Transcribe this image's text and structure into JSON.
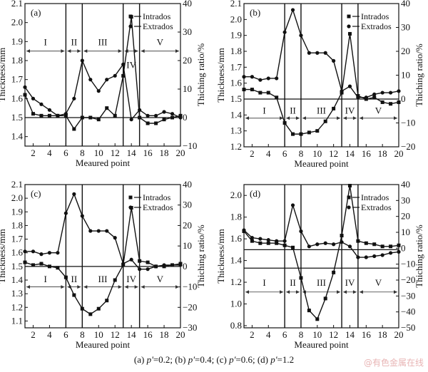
{
  "chart_data": [
    {
      "type": "line",
      "panel_label": "(a)",
      "xlabel": "Meaured point",
      "ylabel": "Thickness/mm",
      "y2label": "Thiching ratio/%",
      "x": [
        1,
        2,
        3,
        4,
        5,
        6,
        7,
        8,
        9,
        10,
        11,
        12,
        13,
        14,
        15,
        16,
        17,
        18,
        19,
        20
      ],
      "xticks": [
        2,
        4,
        6,
        8,
        10,
        12,
        14,
        16,
        18,
        20
      ],
      "xlim": [
        1,
        20
      ],
      "ylim": [
        1.35,
        2.1
      ],
      "yticks": [
        1.4,
        1.5,
        1.6,
        1.7,
        1.8,
        1.9,
        2.0,
        2.1
      ],
      "y2lim": [
        -10,
        40
      ],
      "y2ticks": [
        -10,
        0,
        10,
        20,
        30,
        40
      ],
      "reference_lines_y": [
        1.5
      ],
      "region_boundaries_x": [
        6,
        8,
        13,
        15
      ],
      "regions": [
        {
          "label": "I",
          "from": 1,
          "to": 6
        },
        {
          "label": "II",
          "from": 6,
          "to": 8
        },
        {
          "label": "III",
          "from": 8,
          "to": 13
        },
        {
          "label": "IV",
          "from": 13,
          "to": 15
        },
        {
          "label": "V",
          "from": 15,
          "to": 20
        }
      ],
      "region_arrow_y": 1.85,
      "region_label_y": 1.9,
      "region_iv_label_y": 1.78,
      "legend_position": "top-right",
      "series": [
        {
          "name": "Intrados",
          "marker": "square",
          "values": [
            1.62,
            1.52,
            1.51,
            1.51,
            1.51,
            1.51,
            1.44,
            1.5,
            1.5,
            1.49,
            1.55,
            1.51,
            1.72,
            2.03,
            1.5,
            1.47,
            1.47,
            1.49,
            1.5,
            1.51
          ]
        },
        {
          "name": "Extrados",
          "marker": "circle",
          "values": [
            1.66,
            1.6,
            1.57,
            1.54,
            1.51,
            1.52,
            1.6,
            1.8,
            1.7,
            1.64,
            1.7,
            1.72,
            1.78,
            1.49,
            1.54,
            1.51,
            1.51,
            1.53,
            1.52,
            1.5
          ]
        }
      ]
    },
    {
      "type": "line",
      "panel_label": "(b)",
      "xlabel": "Meaured point",
      "ylabel": "Thickness/mm",
      "y2label": "Thiching ratio/%",
      "x": [
        1,
        2,
        3,
        4,
        5,
        6,
        7,
        8,
        9,
        10,
        11,
        12,
        13,
        14,
        15,
        16,
        17,
        18,
        19,
        20
      ],
      "xticks": [
        2,
        4,
        6,
        8,
        10,
        12,
        14,
        16,
        18,
        20
      ],
      "xlim": [
        1,
        20
      ],
      "ylim": [
        1.2,
        2.1
      ],
      "yticks": [
        1.2,
        1.3,
        1.4,
        1.5,
        1.6,
        1.7,
        1.8,
        1.9,
        2.0,
        2.1
      ],
      "y2lim": [
        -20,
        40
      ],
      "y2ticks": [
        -20,
        -10,
        0,
        10,
        20,
        30,
        40
      ],
      "reference_lines_y": [
        1.5
      ],
      "region_boundaries_x": [
        6,
        8,
        13,
        15
      ],
      "regions": [
        {
          "label": "I",
          "from": 1,
          "to": 6
        },
        {
          "label": "II",
          "from": 6,
          "to": 8
        },
        {
          "label": "III",
          "from": 8,
          "to": 13
        },
        {
          "label": "IV",
          "from": 13,
          "to": 15
        },
        {
          "label": "V",
          "from": 15,
          "to": 20
        }
      ],
      "region_arrow_y": 1.38,
      "region_label_y": 1.43,
      "region_iv_label_y": 1.43,
      "legend_position": "top-right",
      "series": [
        {
          "name": "Intrados",
          "marker": "square",
          "values": [
            1.56,
            1.56,
            1.54,
            1.54,
            1.51,
            1.35,
            1.28,
            1.28,
            1.29,
            1.3,
            1.36,
            1.44,
            1.54,
            1.91,
            1.52,
            1.5,
            1.51,
            1.48,
            1.47,
            1.48
          ]
        },
        {
          "name": "Extrados",
          "marker": "circle",
          "values": [
            1.64,
            1.64,
            1.62,
            1.63,
            1.63,
            1.92,
            2.06,
            1.9,
            1.79,
            1.79,
            1.79,
            1.74,
            1.55,
            1.58,
            1.51,
            1.51,
            1.53,
            1.54,
            1.54,
            1.55
          ]
        }
      ]
    },
    {
      "type": "line",
      "panel_label": "(c)",
      "xlabel": "Meaured point",
      "ylabel": "Thickness/mm",
      "y2label": "Thiching ratio/%",
      "x": [
        1,
        2,
        3,
        4,
        5,
        6,
        7,
        8,
        9,
        10,
        11,
        12,
        13,
        14,
        15,
        16,
        17,
        18,
        19,
        20
      ],
      "xticks": [
        2,
        4,
        6,
        8,
        10,
        12,
        14,
        16,
        18,
        20
      ],
      "xlim": [
        1,
        20
      ],
      "ylim": [
        1.05,
        2.1
      ],
      "yticks": [
        1.1,
        1.2,
        1.3,
        1.4,
        1.5,
        1.6,
        1.7,
        1.8,
        1.9,
        2.0,
        2.1
      ],
      "y2lim": [
        -30,
        40
      ],
      "y2ticks": [
        -30,
        -20,
        -10,
        0,
        10,
        20,
        30,
        40
      ],
      "reference_lines_y": [
        1.5
      ],
      "region_boundaries_x": [
        6,
        8,
        13,
        15
      ],
      "regions": [
        {
          "label": "I",
          "from": 1,
          "to": 6
        },
        {
          "label": "II",
          "from": 6,
          "to": 8
        },
        {
          "label": "III",
          "from": 8,
          "to": 13
        },
        {
          "label": "IV",
          "from": 13,
          "to": 15
        },
        {
          "label": "V",
          "from": 15,
          "to": 20
        }
      ],
      "region_arrow_y": 1.35,
      "region_label_y": 1.41,
      "region_iv_label_y": 1.41,
      "legend_position": "top-right",
      "series": [
        {
          "name": "Intrados",
          "marker": "square",
          "values": [
            1.53,
            1.51,
            1.52,
            1.5,
            1.49,
            1.42,
            1.29,
            1.19,
            1.15,
            1.19,
            1.25,
            1.4,
            1.51,
            1.93,
            1.54,
            1.53,
            1.5,
            1.5,
            1.51,
            1.52
          ]
        },
        {
          "name": "Extrados",
          "marker": "circle",
          "values": [
            1.61,
            1.61,
            1.59,
            1.6,
            1.6,
            1.89,
            2.03,
            1.87,
            1.76,
            1.76,
            1.76,
            1.71,
            1.52,
            1.55,
            1.48,
            1.48,
            1.5,
            1.51,
            1.51,
            1.51
          ]
        }
      ]
    },
    {
      "type": "line",
      "panel_label": "(d)",
      "xlabel": "Meaured point",
      "ylabel": "Thickness/mm",
      "y2label": "Thiching ratio/%",
      "x": [
        1,
        2,
        3,
        4,
        5,
        6,
        7,
        8,
        9,
        10,
        11,
        12,
        13,
        14,
        15,
        16,
        17,
        18,
        19,
        20
      ],
      "xticks": [
        2,
        4,
        6,
        8,
        10,
        12,
        14,
        16,
        18,
        20
      ],
      "xlim": [
        1,
        20
      ],
      "ylim": [
        0.78,
        2.1
      ],
      "yticks": [
        0.8,
        1.0,
        1.2,
        1.4,
        1.6,
        1.8,
        2.0
      ],
      "y2lim": [
        -50,
        40
      ],
      "y2ticks": [
        -50,
        -40,
        -30,
        -20,
        -10,
        0,
        10,
        20,
        30,
        40
      ],
      "reference_lines_y": [
        1.5,
        1.33
      ],
      "region_boundaries_x": [
        6,
        8,
        13,
        15
      ],
      "regions": [
        {
          "label": "I",
          "from": 1,
          "to": 6
        },
        {
          "label": "II",
          "from": 6,
          "to": 8
        },
        {
          "label": "III",
          "from": 8,
          "to": 13
        },
        {
          "label": "IV",
          "from": 13,
          "to": 15
        },
        {
          "label": "V",
          "from": 15,
          "to": 20
        }
      ],
      "region_arrow_y": 1.11,
      "region_label_y": 1.2,
      "region_iv_label_y": 1.2,
      "legend_position": "top-right",
      "series": [
        {
          "name": "Intrados",
          "marker": "square",
          "values": [
            1.67,
            1.58,
            1.56,
            1.56,
            1.56,
            1.54,
            1.52,
            1.24,
            0.94,
            0.86,
            1.05,
            1.29,
            1.63,
            2.09,
            1.58,
            1.56,
            1.55,
            1.53,
            1.53,
            1.54
          ]
        },
        {
          "name": "Extrados",
          "marker": "circle",
          "values": [
            1.68,
            1.61,
            1.6,
            1.59,
            1.58,
            1.58,
            1.91,
            1.67,
            1.53,
            1.55,
            1.56,
            1.55,
            1.57,
            1.53,
            1.43,
            1.43,
            1.44,
            1.45,
            1.47,
            1.48
          ]
        }
      ]
    }
  ],
  "caption": {
    "parts": [
      {
        "text": "(a) ",
        "italic": false
      },
      {
        "text": "p'",
        "italic": true
      },
      {
        "text": "=0.2; (b) ",
        "italic": false
      },
      {
        "text": "p'",
        "italic": true
      },
      {
        "text": "=0.4; (c)  ",
        "italic": false
      },
      {
        "text": "p'",
        "italic": true
      },
      {
        "text": "=0.6; (d) ",
        "italic": false
      },
      {
        "text": "p'",
        "italic": true
      },
      {
        "text": "=1.2",
        "italic": false
      }
    ]
  },
  "watermark": "@有色金属在线"
}
